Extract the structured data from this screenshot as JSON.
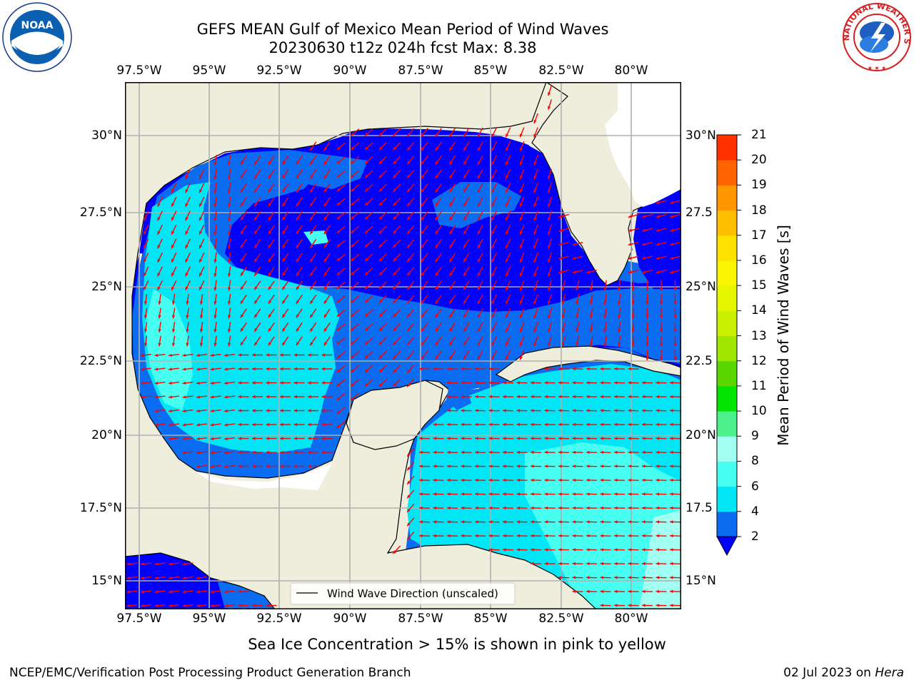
{
  "title_line1": "GEFS MEAN Gulf of Mexico Mean Period of Wind Waves",
  "title_line2": "20230630 t12z 024h fcst   Max: 8.38",
  "lon_labels": [
    "97.5°W",
    "95°W",
    "92.5°W",
    "90°W",
    "87.5°W",
    "85°W",
    "82.5°W",
    "80°W"
  ],
  "lat_labels": [
    "30°N",
    "27.5°N",
    "25°N",
    "22.5°N",
    "20°N",
    "17.5°N",
    "15°N"
  ],
  "lat_labels_right": [
    "30°N",
    "27.5",
    "25°N",
    "22.5",
    "20°N",
    "17.5",
    "15°N"
  ],
  "legend_label": "Wind Wave Direction (unscaled)",
  "colorbar": {
    "title": "Mean Period of Wind Waves [s]",
    "ticks": [
      "2",
      "4",
      "6",
      "8",
      "9",
      "10",
      "11",
      "12",
      "13",
      "14",
      "15",
      "16",
      "17",
      "18",
      "19",
      "20",
      "21"
    ],
    "colors": [
      "#0a6cf0",
      "#00e6f5",
      "#46fff0",
      "#a0fff0",
      "#4cf08c",
      "#00e400",
      "#5ad700",
      "#a0e600",
      "#c8f000",
      "#e6f500",
      "#faf500",
      "#ffe100",
      "#ffbe00",
      "#ff9600",
      "#ff6400",
      "#ff3200",
      "#ff0000"
    ]
  },
  "sea_ice_note": "Sea Ice Concentration > 15% is shown in pink to yellow",
  "footer_left": "NCEP/EMC/Verification Post Processing Product Generation Branch",
  "footer_date": "02 Jul 2023 on ",
  "footer_host": "Hera",
  "logos": {
    "noaa": "NOAA",
    "nws": "NATIONAL WEATHER SERVICE"
  },
  "colors": {
    "land": "#efeddc",
    "arrow": "#ff0000",
    "grid": "#b0b0b0",
    "wave_2_4": "#0a6cf0",
    "wave_lt2": "#0000ff",
    "wave_4_6": "#00e6f5",
    "wave_6_8": "#46fff0",
    "wave_8_9": "#a0fff0"
  }
}
